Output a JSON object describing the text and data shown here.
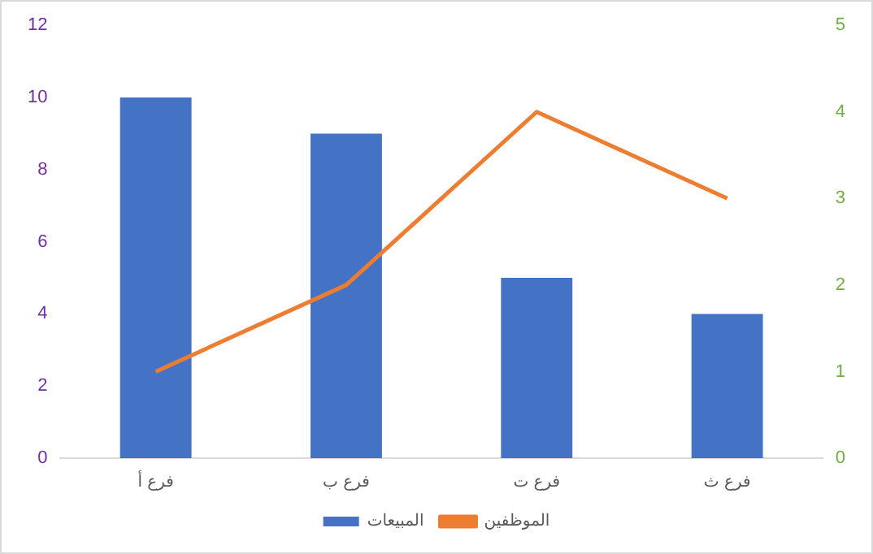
{
  "chart_data": {
    "type": "bar",
    "categories": [
      "فرع أ",
      "فرع ب",
      "فرع ت",
      "فرع ث"
    ],
    "series": [
      {
        "name": "المبيعات",
        "color": "#4472c4",
        "values": [
          10,
          9,
          5,
          4
        ]
      },
      {
        "name": "الموظفين",
        "type": "line",
        "axis": "y2",
        "color": "#ed7d31",
        "values": [
          1,
          2,
          4,
          3
        ]
      }
    ],
    "ylim": [
      0,
      12
    ],
    "yticks": [
      0,
      2,
      4,
      6,
      8,
      10,
      12
    ],
    "y2lim": [
      0,
      5
    ],
    "y2ticks": [
      0,
      1,
      2,
      3,
      4,
      5
    ],
    "grid": false,
    "legend": "bottom",
    "marker": "none"
  }
}
